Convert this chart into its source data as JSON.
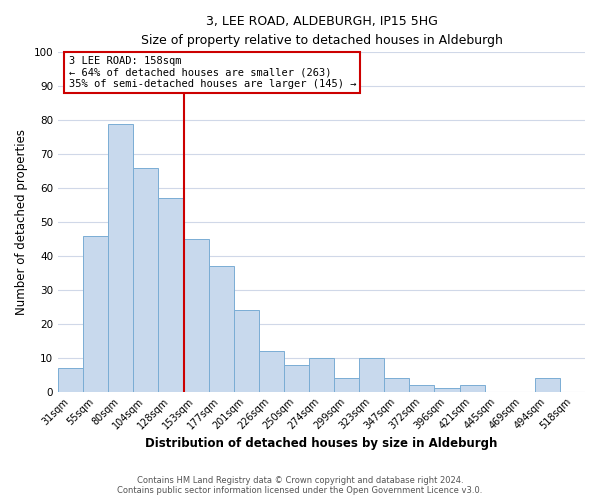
{
  "title": "3, LEE ROAD, ALDEBURGH, IP15 5HG",
  "subtitle": "Size of property relative to detached houses in Aldeburgh",
  "xlabel": "Distribution of detached houses by size in Aldeburgh",
  "ylabel": "Number of detached properties",
  "bar_labels": [
    "31sqm",
    "55sqm",
    "80sqm",
    "104sqm",
    "128sqm",
    "153sqm",
    "177sqm",
    "201sqm",
    "226sqm",
    "250sqm",
    "274sqm",
    "299sqm",
    "323sqm",
    "347sqm",
    "372sqm",
    "396sqm",
    "421sqm",
    "445sqm",
    "469sqm",
    "494sqm",
    "518sqm"
  ],
  "bar_values": [
    7,
    46,
    79,
    66,
    57,
    45,
    37,
    24,
    12,
    8,
    10,
    4,
    10,
    4,
    2,
    1,
    2,
    0,
    0,
    4,
    0
  ],
  "bar_color": "#c8d9ed",
  "bar_edge_color": "#7aadd4",
  "vline_x_index": 5,
  "vline_color": "#cc0000",
  "annotation_title": "3 LEE ROAD: 158sqm",
  "annotation_line1": "← 64% of detached houses are smaller (263)",
  "annotation_line2": "35% of semi-detached houses are larger (145) →",
  "annotation_box_color": "#ffffff",
  "annotation_box_edge": "#cc0000",
  "ylim": [
    0,
    100
  ],
  "yticks": [
    0,
    10,
    20,
    30,
    40,
    50,
    60,
    70,
    80,
    90,
    100
  ],
  "footer1": "Contains HM Land Registry data © Crown copyright and database right 2024.",
  "footer2": "Contains public sector information licensed under the Open Government Licence v3.0.",
  "background_color": "#ffffff",
  "grid_color": "#d0d8e8"
}
